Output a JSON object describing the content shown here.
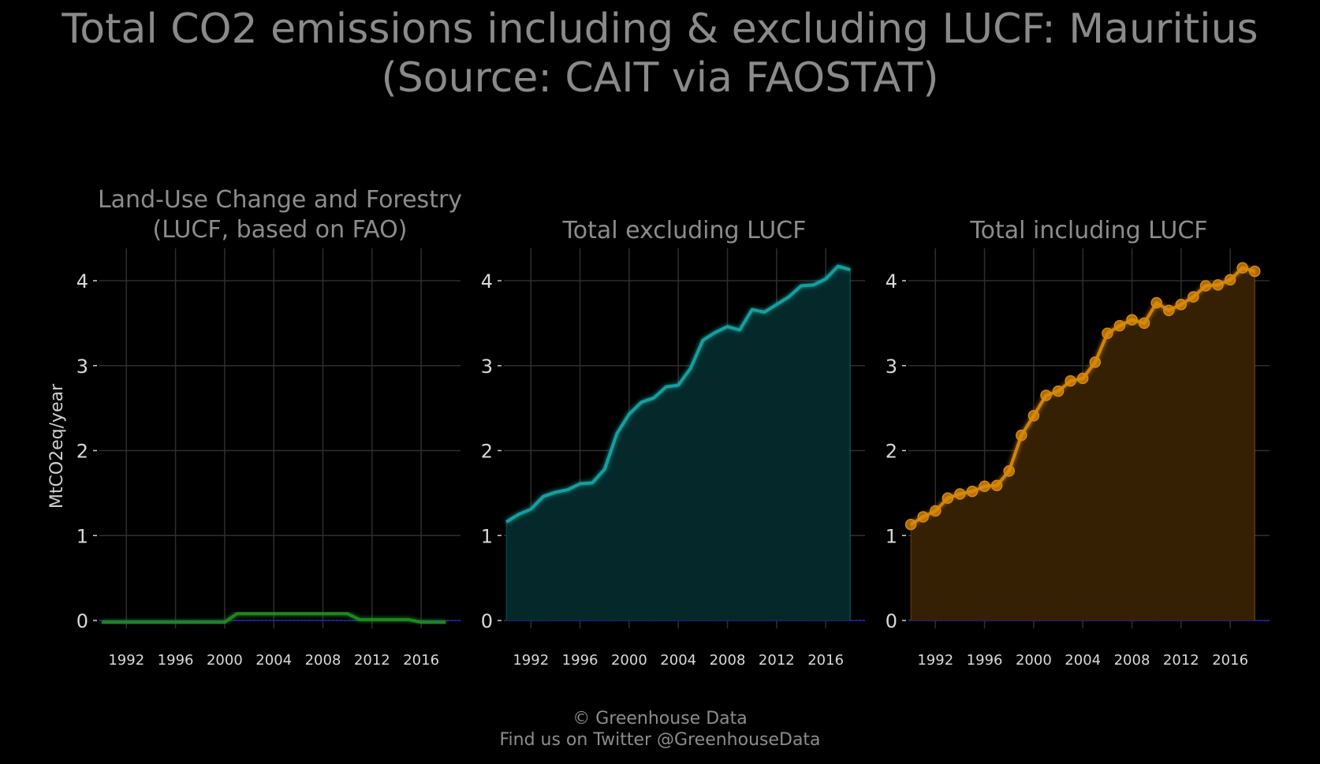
{
  "title": {
    "line1": "Total CO2 emissions including & excluding LUCF: Mauritius",
    "line2": "(Source: CAIT via FAOSTAT)"
  },
  "footer": {
    "line1": "© Greenhouse Data",
    "line2": "Find us on Twitter @GreenhouseData"
  },
  "colors": {
    "background": "#000000",
    "grid": "#2e2e2e",
    "lucf": "#1f8f1f",
    "excluding": "#1aa6a6",
    "excluding_fill": "#05292a",
    "including": "#d98a0b",
    "including_fill": "#352004",
    "zero_line": "#1a1aff"
  },
  "chart_data": [
    {
      "type": "line",
      "title": "Land-Use Change and Forestry\n(LUCF, based on FAO)",
      "ylabel": "MtCO2eq/year",
      "xlabel": "",
      "xticks": [
        1992,
        1996,
        2000,
        2004,
        2008,
        2012,
        2016
      ],
      "yticks": [
        0,
        1,
        2,
        3,
        4
      ],
      "xlim": [
        1989.8,
        2019.2
      ],
      "ylim": [
        -0.1,
        4.4
      ],
      "grid": true,
      "series": [
        {
          "x": [
            1990,
            1991,
            1992,
            1993,
            1994,
            1995,
            1996,
            1997,
            1998,
            1999,
            2000,
            2001,
            2002,
            2003,
            2004,
            2005,
            2006,
            2007,
            2008,
            2009,
            2010,
            2011,
            2012,
            2013,
            2014,
            2015,
            2016,
            2017,
            2018
          ],
          "values": [
            -0.02,
            -0.02,
            -0.02,
            -0.02,
            -0.02,
            -0.02,
            -0.02,
            -0.02,
            -0.02,
            -0.02,
            -0.02,
            0.08,
            0.08,
            0.08,
            0.08,
            0.08,
            0.08,
            0.08,
            0.08,
            0.08,
            0.08,
            0.01,
            0.01,
            0.01,
            0.01,
            0.01,
            -0.02,
            -0.02,
            -0.02
          ]
        }
      ]
    },
    {
      "type": "area",
      "title": "Total excluding LUCF",
      "xticks": [
        1992,
        1996,
        2000,
        2004,
        2008,
        2012,
        2016
      ],
      "yticks": [
        0,
        1,
        2,
        3,
        4
      ],
      "xlim": [
        1989.8,
        2019.2
      ],
      "ylim": [
        -0.1,
        4.4
      ],
      "grid": true,
      "series": [
        {
          "x": [
            1990,
            1991,
            1992,
            1993,
            1994,
            1995,
            1996,
            1997,
            1998,
            1999,
            2000,
            2001,
            2002,
            2003,
            2004,
            2005,
            2006,
            2007,
            2008,
            2009,
            2010,
            2011,
            2012,
            2013,
            2014,
            2015,
            2016,
            2017,
            2018
          ],
          "values": [
            1.16,
            1.25,
            1.31,
            1.46,
            1.51,
            1.54,
            1.61,
            1.62,
            1.78,
            2.2,
            2.43,
            2.57,
            2.62,
            2.75,
            2.77,
            2.97,
            3.3,
            3.39,
            3.46,
            3.42,
            3.66,
            3.63,
            3.72,
            3.81,
            3.94,
            3.95,
            4.02,
            4.17,
            4.13
          ]
        }
      ]
    },
    {
      "type": "area",
      "title": "Total including LUCF",
      "xticks": [
        1992,
        1996,
        2000,
        2004,
        2008,
        2012,
        2016
      ],
      "yticks": [
        0,
        1,
        2,
        3,
        4
      ],
      "xlim": [
        1989.8,
        2019.2
      ],
      "ylim": [
        -0.1,
        4.4
      ],
      "grid": true,
      "series": [
        {
          "x": [
            1990,
            1991,
            1992,
            1993,
            1994,
            1995,
            1996,
            1997,
            1998,
            1999,
            2000,
            2001,
            2002,
            2003,
            2004,
            2005,
            2006,
            2007,
            2008,
            2009,
            2010,
            2011,
            2012,
            2013,
            2014,
            2015,
            2016,
            2017,
            2018
          ],
          "values": [
            1.13,
            1.22,
            1.29,
            1.44,
            1.49,
            1.52,
            1.58,
            1.59,
            1.76,
            2.18,
            2.41,
            2.65,
            2.7,
            2.82,
            2.85,
            3.04,
            3.38,
            3.47,
            3.54,
            3.5,
            3.74,
            3.65,
            3.72,
            3.81,
            3.94,
            3.95,
            4.01,
            4.15,
            4.11
          ]
        }
      ]
    }
  ]
}
